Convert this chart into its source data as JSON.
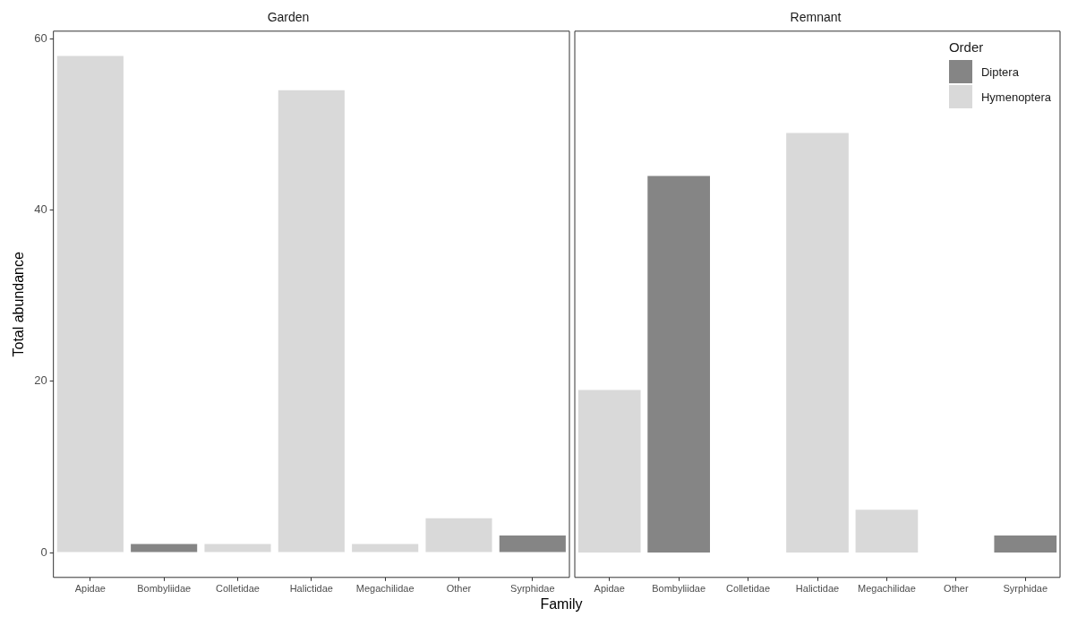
{
  "chart_data": [
    {
      "type": "bar",
      "title": "Garden",
      "xlabel": "Family",
      "ylabel": "Total abundance",
      "categories": [
        "Apidae",
        "Bombyliidae",
        "Colletidae",
        "Halictidae",
        "Megachilidae",
        "Other",
        "Syrphidae"
      ],
      "series": [
        {
          "color": "#858585",
          "values": [
            null,
            1,
            null,
            null,
            null,
            null,
            2
          ]
        },
        {
          "color": "#d9d9d9",
          "values": [
            58,
            null,
            1,
            54,
            1,
            4,
            null
          ]
        }
      ],
      "ylim": [
        -2.9,
        60.9
      ],
      "yticks": [
        0,
        20,
        40,
        60
      ],
      "grid": false,
      "legend": false
    },
    {
      "type": "bar",
      "title": "Remnant",
      "categories": [
        "Apidae",
        "Bombyliidae",
        "Colletidae",
        "Halictidae",
        "Megachilidae",
        "Other",
        "Syrphidae"
      ],
      "series": [
        {
          "name": "Diptera",
          "color": "#858585",
          "values": [
            null,
            44,
            null,
            null,
            null,
            null,
            2
          ]
        },
        {
          "name": "Hymenoptera",
          "color": "#d9d9d9",
          "values": [
            19,
            null,
            null,
            49,
            5,
            null,
            null
          ]
        }
      ],
      "ylim": [
        -2.9,
        60.9
      ],
      "yticks": [
        0,
        20,
        40,
        60
      ],
      "grid": false,
      "legend": "top right",
      "legend_title": "Order",
      "tick_labels": "x"
    }
  ]
}
